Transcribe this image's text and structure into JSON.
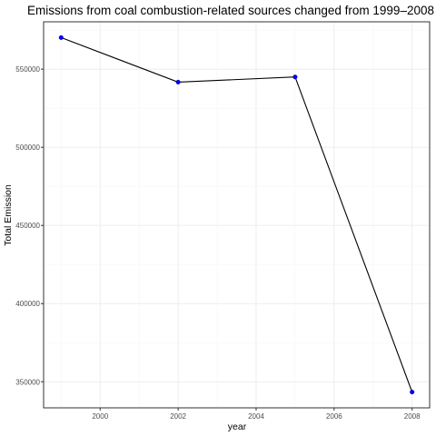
{
  "chart_data": {
    "type": "line",
    "title": "Emissions from coal combustion-related sources changed from 1999–2008",
    "xlabel": "year",
    "ylabel": "Total Emission",
    "x": [
      1999,
      2002,
      2005,
      2008
    ],
    "series": [
      {
        "values": [
          570200,
          541700,
          545000,
          343400
        ]
      }
    ],
    "xlim": [
      1998.55,
      2008.45
    ],
    "ylim": [
      333300,
      580300
    ],
    "x_ticks": [
      2000,
      2002,
      2004,
      2006,
      2008
    ],
    "y_ticks": [
      350000,
      400000,
      450000,
      500000,
      550000
    ],
    "x_tick_labels": [
      "2000",
      "2002",
      "2004",
      "2006",
      "2008"
    ],
    "y_tick_labels": [
      "350000",
      "400000",
      "450000",
      "500000",
      "550000"
    ],
    "grid": true,
    "legend": "none",
    "colors": {
      "line": "#000000",
      "point": "#0000ff",
      "panel_border": "#333333",
      "grid": "#ebebeb"
    }
  }
}
